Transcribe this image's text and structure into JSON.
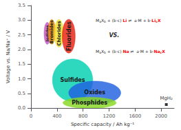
{
  "chart_data": {
    "type": "ellipse",
    "xlabel": "Specific capacity / Ah kg⁻¹",
    "ylabel": "Voltage vs. Na/Na⁺ / V",
    "xlim": [
      0,
      2200
    ],
    "ylim": [
      0,
      3.5
    ],
    "xticks": [
      0,
      400,
      800,
      1200,
      1600,
      2000
    ],
    "yticks": [
      {
        "value": 0.0,
        "label": "0.0"
      },
      0.5,
      {
        "value": 1.0,
        "label": "1.0"
      },
      1.5,
      {
        "value": 2.0,
        "label": "2.0"
      },
      2.5,
      {
        "value": 3.0,
        "label": "3.0"
      },
      3.5
    ],
    "grid": false,
    "ellipses": [
      {
        "name": "Iodides",
        "cx": 250,
        "cy": 2.55,
        "width": 100,
        "height": 0.75,
        "color": "#c055c0"
      },
      {
        "name": "Bromides",
        "cx": 320,
        "cy": 2.6,
        "width": 110,
        "height": 0.85,
        "color": "#e89000"
      },
      {
        "name": "Chlorides",
        "cx": 430,
        "cy": 2.55,
        "width": 140,
        "height": 0.95,
        "color": "#f0e030"
      },
      {
        "name": "Fluorides",
        "cx": 580,
        "cy": 2.45,
        "width": 200,
        "height": 1.15,
        "color": "#e82010"
      },
      {
        "name": "Sulfides",
        "cx": 640,
        "cy": 0.95,
        "width": 620,
        "height": 1.45,
        "color": "#00d0b0"
      },
      {
        "name": "Oxides",
        "cx": 980,
        "cy": 0.52,
        "width": 800,
        "height": 0.8,
        "color": "#2060e0"
      },
      {
        "name": "Phosphides",
        "cx": 900,
        "cy": 0.18,
        "width": 820,
        "height": 0.38,
        "color": "#88d820"
      }
    ],
    "points": [
      {
        "name": "MgH₂",
        "x": 2080,
        "y": 0.12,
        "marker": "square",
        "color": "#000000"
      }
    ],
    "annotations": [
      {
        "segments": [
          {
            "text": "M"
          },
          {
            "text": "a",
            "sub": true
          },
          {
            "text": "X"
          },
          {
            "text": "b",
            "sub": true
          },
          {
            "text": " + (b·c) "
          },
          {
            "text": "Li",
            "color": "#ff0000"
          },
          {
            "text": " ⇌  a·M + b·"
          },
          {
            "text": "Li",
            "color": "#ff0000"
          },
          {
            "text": "c",
            "color": "#ff0000",
            "sub": true
          },
          {
            "text": "X",
            "color": "#ff0000"
          }
        ]
      },
      {
        "text": "VS."
      },
      {
        "segments": [
          {
            "text": "M"
          },
          {
            "text": "a",
            "sub": true
          },
          {
            "text": "X"
          },
          {
            "text": "b",
            "sub": true
          },
          {
            "text": " + (b·c) "
          },
          {
            "text": "Na",
            "color": "#ff0000"
          },
          {
            "text": " ⇌  a·M + b·"
          },
          {
            "text": "Na",
            "color": "#ff0000"
          },
          {
            "text": "c",
            "color": "#ff0000",
            "sub": true
          },
          {
            "text": "X",
            "color": "#ff0000"
          }
        ]
      }
    ]
  }
}
